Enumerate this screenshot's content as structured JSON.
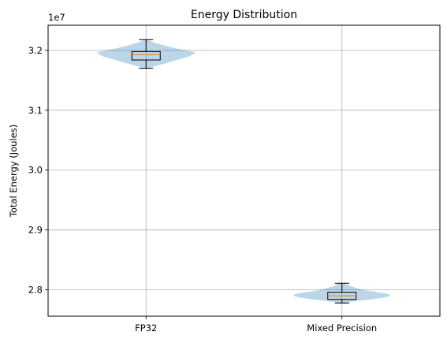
{
  "chart_data": {
    "type": "violin",
    "title": "Energy Distribution",
    "xlabel": "",
    "ylabel": "Total Energy (Joules)",
    "y_offset_label": "1e7",
    "y_scale": 10000000,
    "ylim": [
      27560000,
      32420000
    ],
    "yticks": [
      28000000,
      29000000,
      30000000,
      31000000,
      32000000
    ],
    "ytick_labels": [
      "2.8",
      "2.9",
      "3.0",
      "3.1",
      "3.2"
    ],
    "categories": [
      "FP32",
      "Mixed Precision"
    ],
    "grid": true,
    "violin_color": "#1f77b4",
    "box_color": "#000000",
    "median_color": "#ff7f0e",
    "series": [
      {
        "category": "FP32",
        "min": 31700000,
        "q1": 31840000,
        "median": 31930000,
        "q3": 31980000,
        "max": 32180000,
        "density": [
          [
            31700000,
            0.05
          ],
          [
            31740000,
            0.2
          ],
          [
            31780000,
            0.38
          ],
          [
            31820000,
            0.55
          ],
          [
            31860000,
            0.72
          ],
          [
            31900000,
            0.88
          ],
          [
            31940000,
            0.98
          ],
          [
            31970000,
            1.0
          ],
          [
            32000000,
            0.82
          ],
          [
            32040000,
            0.58
          ],
          [
            32080000,
            0.38
          ],
          [
            32120000,
            0.2
          ],
          [
            32160000,
            0.08
          ],
          [
            32180000,
            0.03
          ]
        ]
      },
      {
        "category": "Mixed Precision",
        "min": 27780000,
        "q1": 27840000,
        "median": 27900000,
        "q3": 27960000,
        "max": 28110000,
        "density": [
          [
            27780000,
            0.06
          ],
          [
            27810000,
            0.28
          ],
          [
            27840000,
            0.6
          ],
          [
            27870000,
            0.85
          ],
          [
            27900000,
            1.0
          ],
          [
            27930000,
            0.95
          ],
          [
            27960000,
            0.75
          ],
          [
            27990000,
            0.5
          ],
          [
            28030000,
            0.3
          ],
          [
            28070000,
            0.15
          ],
          [
            28110000,
            0.04
          ]
        ]
      }
    ]
  }
}
